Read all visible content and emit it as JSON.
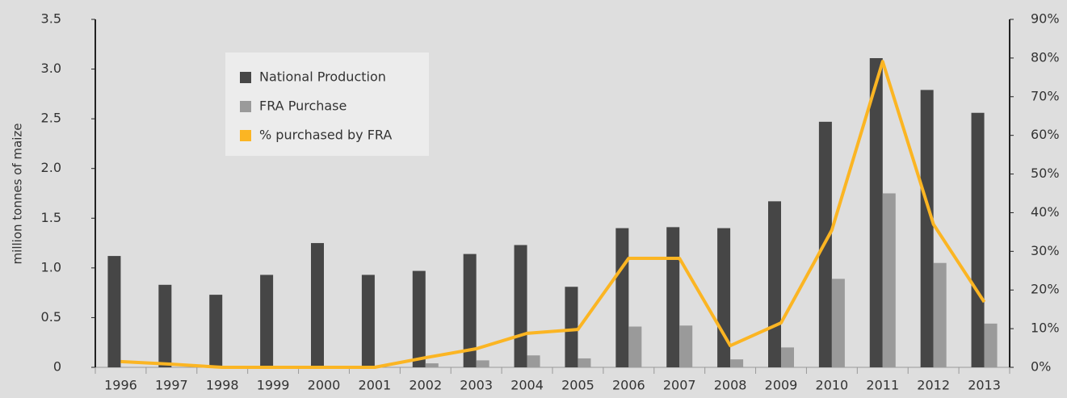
{
  "chart_data": {
    "type": "bar",
    "y_label": "million tonnes of maize",
    "categories": [
      "1996",
      "1997",
      "1998",
      "1999",
      "2000",
      "2001",
      "2002",
      "2003",
      "2004",
      "2005",
      "2006",
      "2007",
      "2008",
      "2009",
      "2010",
      "2011",
      "2012",
      "2013"
    ],
    "series": [
      {
        "name": "National Production",
        "type": "bar",
        "color": "#464646",
        "values": [
          1.12,
          0.83,
          0.73,
          0.93,
          1.25,
          0.93,
          0.97,
          1.14,
          1.23,
          0.81,
          1.4,
          1.41,
          1.4,
          1.67,
          2.47,
          3.11,
          2.79,
          2.56
        ]
      },
      {
        "name": "FRA Purchase",
        "type": "bar",
        "color": "#9a9a9a",
        "values": [
          0,
          0,
          0,
          0,
          0,
          0,
          0.04,
          0.07,
          0.12,
          0.09,
          0.41,
          0.42,
          0.08,
          0.2,
          0.89,
          1.75,
          1.05,
          0.44
        ]
      },
      {
        "name": "% purchased by FRA",
        "type": "line",
        "axis": "y2",
        "color": "#fbb523",
        "values": [
          1.5,
          0.8,
          0,
          0,
          0,
          0,
          2.5,
          4.8,
          8.8,
          9.8,
          28.2,
          28.2,
          5.6,
          11.5,
          35.5,
          79.1,
          37,
          16.9
        ]
      }
    ],
    "ylim": [
      0,
      3.5
    ],
    "yticks": [
      0,
      0.5,
      {
        "value": 1,
        "label": "1.0"
      },
      1.5,
      {
        "value": 2,
        "label": "2.0"
      },
      2.5,
      {
        "value": 3,
        "label": "3.0"
      },
      3.5
    ],
    "y2lim": [
      0,
      90
    ],
    "y2ticks": [
      {
        "value": 0,
        "label": "0%"
      },
      {
        "value": 10,
        "label": "10%"
      },
      {
        "value": 20,
        "label": "20%"
      },
      {
        "value": 30,
        "label": "30%"
      },
      {
        "value": 40,
        "label": "40%"
      },
      {
        "value": 50,
        "label": "50%"
      },
      {
        "value": 60,
        "label": "60%"
      },
      {
        "value": 70,
        "label": "70%"
      },
      {
        "value": 80,
        "label": "80%"
      },
      {
        "value": 90,
        "label": "90%"
      }
    ]
  }
}
